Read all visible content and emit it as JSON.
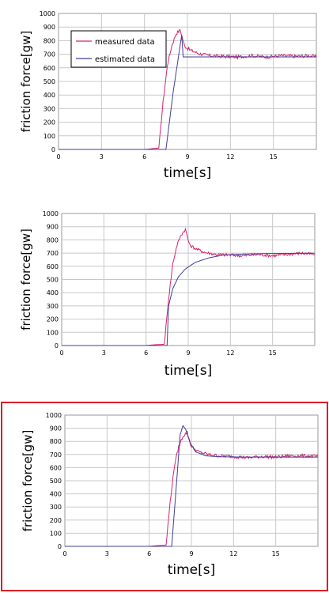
{
  "chart_data": [
    {
      "type": "line",
      "panel": "top",
      "xlabel": "time[s]",
      "ylabel": "friction force[gw]",
      "xlim": [
        0,
        18
      ],
      "ylim": [
        0,
        1000
      ],
      "x_ticks": [
        0,
        3,
        6,
        9,
        12,
        15
      ],
      "y_ticks": [
        0,
        100,
        200,
        300,
        400,
        500,
        600,
        700,
        800,
        900,
        1000
      ],
      "legend": [
        "measured data",
        "estimated data"
      ],
      "legend_position": "top-left",
      "grid": true,
      "series": [
        {
          "name": "measured data",
          "color": "#d6246e",
          "points": [
            [
              0,
              0
            ],
            [
              6.0,
              0
            ],
            [
              6.5,
              5
            ],
            [
              7.0,
              10
            ],
            [
              7.3,
              350
            ],
            [
              7.6,
              620
            ],
            [
              7.9,
              760
            ],
            [
              8.2,
              850
            ],
            [
              8.5,
              880
            ],
            [
              8.8,
              760
            ],
            [
              9.2,
              730
            ],
            [
              9.8,
              705
            ],
            [
              10.5,
              690
            ],
            [
              11.5,
              685
            ],
            [
              12.5,
              680
            ],
            [
              13.5,
              690
            ],
            [
              14.5,
              680
            ],
            [
              15.5,
              690
            ],
            [
              16.5,
              685
            ],
            [
              17.5,
              690
            ],
            [
              18,
              680
            ]
          ],
          "noise": 12
        },
        {
          "name": "estimated data",
          "color": "#3f3f96",
          "points": [
            [
              0,
              0
            ],
            [
              7.5,
              0
            ],
            [
              8.0,
              420
            ],
            [
              8.4,
              700
            ],
            [
              8.6,
              840
            ],
            [
              8.7,
              680
            ],
            [
              18,
              680
            ]
          ],
          "noise": 0
        }
      ]
    },
    {
      "type": "line",
      "panel": "middle",
      "xlabel": "time[s]",
      "ylabel": "friction force[gw]",
      "xlim": [
        0,
        18
      ],
      "ylim": [
        0,
        1000
      ],
      "x_ticks": [
        0,
        3,
        6,
        9,
        12,
        15
      ],
      "y_ticks": [
        0,
        100,
        200,
        300,
        400,
        500,
        600,
        700,
        800,
        900,
        1000
      ],
      "grid": true,
      "series": [
        {
          "name": "measured data",
          "color": "#d6246e",
          "points": [
            [
              0,
              0
            ],
            [
              6.0,
              0
            ],
            [
              6.5,
              5
            ],
            [
              7.3,
              10
            ],
            [
              7.6,
              350
            ],
            [
              7.9,
              620
            ],
            [
              8.2,
              760
            ],
            [
              8.5,
              840
            ],
            [
              8.8,
              880
            ],
            [
              9.1,
              760
            ],
            [
              9.6,
              730
            ],
            [
              10.2,
              705
            ],
            [
              11.0,
              690
            ],
            [
              12.0,
              685
            ],
            [
              13.0,
              680
            ],
            [
              14.0,
              690
            ],
            [
              15.0,
              680
            ],
            [
              16.0,
              690
            ],
            [
              17.0,
              700
            ],
            [
              18,
              690
            ]
          ],
          "noise": 12
        },
        {
          "name": "estimated data",
          "color": "#3f3f96",
          "points": [
            [
              0,
              0
            ],
            [
              7.5,
              0
            ],
            [
              7.6,
              300
            ],
            [
              7.9,
              430
            ],
            [
              8.3,
              520
            ],
            [
              8.8,
              580
            ],
            [
              9.5,
              630
            ],
            [
              10.5,
              665
            ],
            [
              11.5,
              685
            ],
            [
              13.0,
              693
            ],
            [
              15.0,
              697
            ],
            [
              18,
              699
            ]
          ],
          "noise": 0
        }
      ]
    },
    {
      "type": "line",
      "panel": "bottom",
      "xlabel": "time[s]",
      "ylabel": "friction force[gw]",
      "xlim": [
        0,
        18
      ],
      "ylim": [
        0,
        1000
      ],
      "x_ticks": [
        0,
        3,
        6,
        9,
        12,
        15
      ],
      "y_ticks": [
        0,
        100,
        200,
        300,
        400,
        500,
        600,
        700,
        800,
        900,
        1000
      ],
      "grid": true,
      "series": [
        {
          "name": "measured data",
          "color": "#d6246e",
          "points": [
            [
              0,
              0
            ],
            [
              6.0,
              0
            ],
            [
              6.5,
              5
            ],
            [
              7.2,
              10
            ],
            [
              7.5,
              350
            ],
            [
              7.8,
              620
            ],
            [
              8.1,
              760
            ],
            [
              8.4,
              840
            ],
            [
              8.7,
              870
            ],
            [
              9.0,
              760
            ],
            [
              9.5,
              720
            ],
            [
              10.2,
              700
            ],
            [
              11.0,
              690
            ],
            [
              12.0,
              685
            ],
            [
              13.0,
              675
            ],
            [
              14.0,
              685
            ],
            [
              15.0,
              680
            ],
            [
              16.0,
              690
            ],
            [
              17.0,
              690
            ],
            [
              18,
              685
            ]
          ],
          "noise": 12
        },
        {
          "name": "estimated data",
          "color": "#3f3f96",
          "points": [
            [
              0,
              0
            ],
            [
              7.6,
              0
            ],
            [
              7.9,
              420
            ],
            [
              8.2,
              850
            ],
            [
              8.4,
              920
            ],
            [
              8.6,
              890
            ],
            [
              8.9,
              790
            ],
            [
              9.3,
              720
            ],
            [
              10.0,
              690
            ],
            [
              11.0,
              682
            ],
            [
              13.0,
              680
            ],
            [
              18,
              680
            ]
          ],
          "noise": 0
        }
      ]
    }
  ]
}
